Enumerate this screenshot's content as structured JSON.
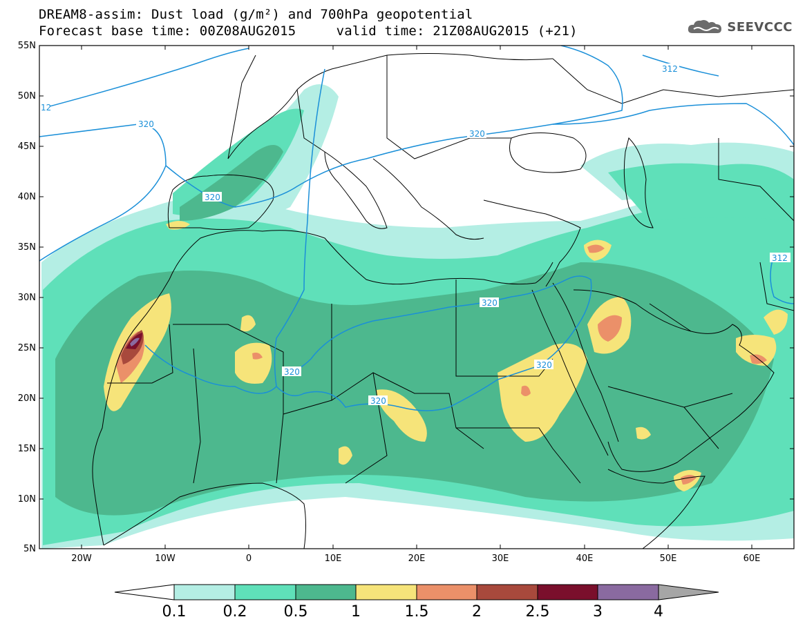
{
  "header": {
    "title_line1": "DREAM8-assim: Dust load (g/m²) and 700hPa geopotential",
    "title_line2": "Forecast base time: 00Z08AUG2015     valid time: 21Z08AUG2015 (+21)"
  },
  "logo": {
    "text": "SEEVCCC",
    "icon": "cloud-icon"
  },
  "axes": {
    "lat_labels": [
      "55N",
      "50N",
      "45N",
      "40N",
      "35N",
      "30N",
      "25N",
      "20N",
      "15N",
      "10N",
      "5N"
    ],
    "lon_labels": [
      "20W",
      "10W",
      "0",
      "10E",
      "20E",
      "30E",
      "40E",
      "50E",
      "60E"
    ]
  },
  "contour_labels": [
    "12",
    "320",
    "320",
    "320",
    "312",
    "320",
    "320",
    "320",
    "320",
    "312"
  ],
  "colorbar": {
    "labels": [
      "0.1",
      "0.2",
      "0.5",
      "1",
      "1.5",
      "2",
      "2.5",
      "3",
      "4"
    ],
    "colors": [
      "#b4eee4",
      "#5fe0b9",
      "#4db88e",
      "#f6e47a",
      "#eb9069",
      "#a8493c",
      "#7a0f2c",
      "#8a6aa0",
      "#a6a6a6"
    ]
  },
  "colors": {
    "dust_01": "#b4eee4",
    "dust_02": "#5fe0b9",
    "dust_05": "#4db88e",
    "dust_1": "#f6e47a",
    "dust_15": "#eb9069",
    "dust_2": "#a8493c",
    "dust_25": "#7a0f2c",
    "dust_3": "#8a6aa0",
    "geopotential": "#1a8fd8"
  }
}
